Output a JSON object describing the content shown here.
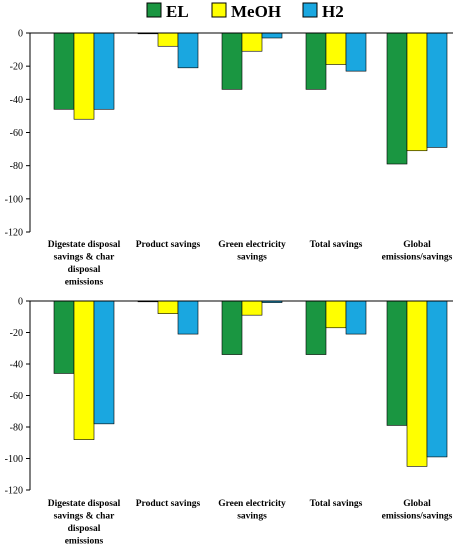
{
  "legend": [
    {
      "label": "EL",
      "color": "#1a9641"
    },
    {
      "label": "MeOH",
      "color": "#ffff00"
    },
    {
      "label": "H2",
      "color": "#1aa7e0"
    }
  ],
  "chart_data": [
    {
      "type": "bar",
      "categories": [
        [
          "Digestate disposal",
          "savings & char",
          "disposal",
          "emissions"
        ],
        [
          "Product savings"
        ],
        [
          "Green electricity",
          "savings"
        ],
        [
          "Total savings"
        ],
        [
          "Global",
          "emissions/savings"
        ]
      ],
      "series": [
        {
          "name": "EL",
          "values": [
            -46,
            0,
            -34,
            -34,
            -79
          ]
        },
        {
          "name": "MeOH",
          "values": [
            -52,
            -8,
            -11,
            -19,
            -71
          ]
        },
        {
          "name": "H2",
          "values": [
            -46,
            -21,
            -3,
            -23,
            -69
          ]
        }
      ],
      "ylim": [
        -120,
        0
      ],
      "yticks": [
        0,
        -20,
        -40,
        -60,
        -80,
        -100,
        -120
      ],
      "legend_position": "top"
    },
    {
      "type": "bar",
      "categories": [
        [
          "Digestate disposal",
          "savings & char",
          "disposal",
          "emissions"
        ],
        [
          "Product savings"
        ],
        [
          "Green electricity",
          "savings"
        ],
        [
          "Total savings"
        ],
        [
          "Global",
          "emissions/savings"
        ]
      ],
      "series": [
        {
          "name": "EL",
          "values": [
            -46,
            0,
            -34,
            -34,
            -79
          ]
        },
        {
          "name": "MeOH",
          "values": [
            -88,
            -8,
            -9,
            -17,
            -105
          ]
        },
        {
          "name": "H2",
          "values": [
            -78,
            -21,
            -1,
            -21,
            -99
          ]
        }
      ],
      "ylim": [
        -120,
        0
      ],
      "yticks": [
        0,
        -20,
        -40,
        -60,
        -80,
        -100,
        -120
      ]
    }
  ]
}
